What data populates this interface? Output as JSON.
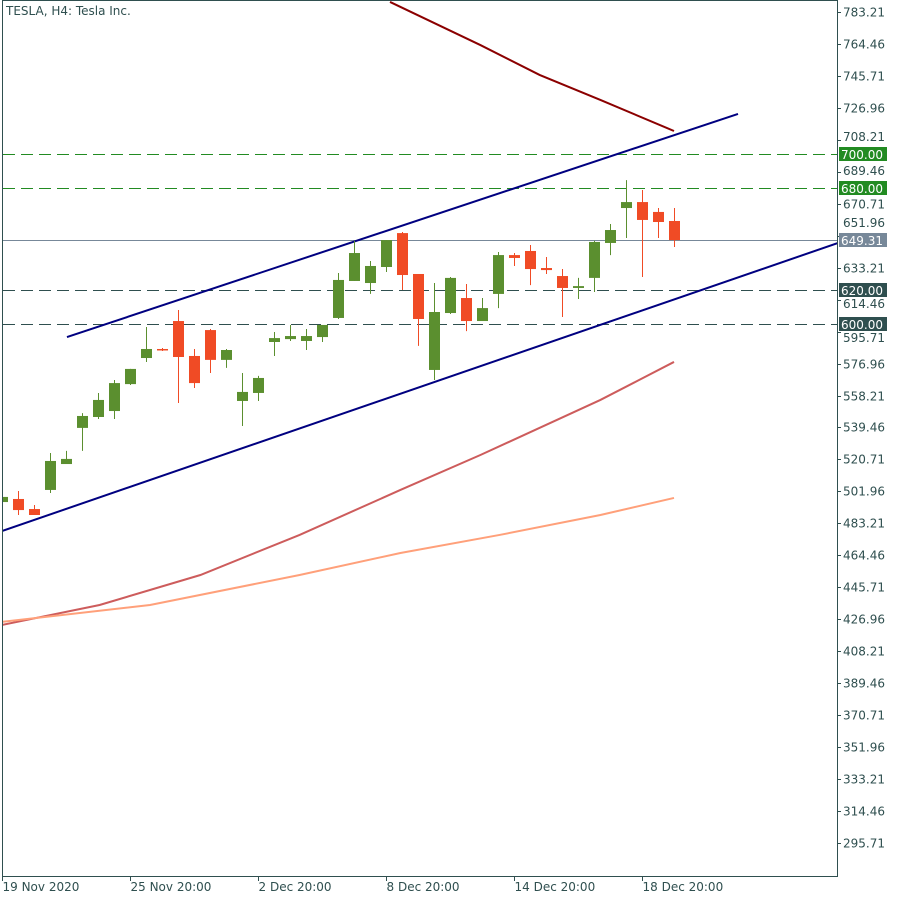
{
  "header": {
    "title": "TESLA, H4:  Tesla Inc."
  },
  "chart_data": {
    "type": "candlestick",
    "title": "TESLA, H4:  Tesla Inc.",
    "ylim": [
      286.34,
      789.07
    ],
    "yticks": [
      "783.21",
      "764.46",
      "745.71",
      "726.96",
      "708.21",
      "689.46",
      "670.71",
      "651.96",
      "633.21",
      "614.46",
      "595.71",
      "576.96",
      "558.21",
      "539.46",
      "520.71",
      "501.96",
      "483.21",
      "464.46",
      "445.71",
      "426.96",
      "408.21",
      "389.46",
      "370.71",
      "351.96",
      "333.21",
      "314.46",
      "295.71"
    ],
    "xticks": [
      {
        "index": 0,
        "label": "19 Nov 2020"
      },
      {
        "index": 8,
        "label": "25 Nov 20:00"
      },
      {
        "index": 16,
        "label": "2 Dec 20:00"
      },
      {
        "index": 24,
        "label": "8 Dec 20:00"
      },
      {
        "index": 32,
        "label": "14 Dec 20:00"
      },
      {
        "index": 40,
        "label": "18 Dec 20:00"
      }
    ],
    "candles": [
      [
        495.7,
        498.7,
        495.7,
        498.7
      ],
      [
        497.5,
        502.2,
        488.1,
        491.0
      ],
      [
        491.6,
        494.0,
        488.1,
        488.1
      ],
      [
        502.8,
        524.5,
        501.0,
        519.8
      ],
      [
        518.0,
        525.7,
        518.0,
        521.0
      ],
      [
        539.2,
        547.9,
        525.7,
        546.2
      ],
      [
        545.6,
        559.7,
        544.4,
        555.6
      ],
      [
        549.1,
        567.3,
        544.4,
        565.5
      ],
      [
        564.9,
        573.8,
        564.4,
        573.8
      ],
      [
        580.2,
        598.4,
        577.9,
        585.5
      ],
      [
        585.5,
        586.1,
        584.3,
        584.9
      ],
      [
        601.9,
        608.4,
        553.8,
        580.8
      ],
      [
        581.4,
        585.5,
        562.6,
        565.5
      ],
      [
        596.6,
        597.2,
        571.4,
        579.1
      ],
      [
        579.1,
        585.5,
        574.4,
        584.9
      ],
      [
        555.0,
        571.4,
        540.3,
        560.3
      ],
      [
        559.7,
        569.7,
        555.0,
        568.5
      ],
      [
        589.6,
        595.5,
        581.4,
        591.9
      ],
      [
        591.3,
        599.6,
        590.2,
        593.1
      ],
      [
        590.2,
        597.2,
        584.9,
        593.1
      ],
      [
        592.5,
        599.6,
        589.6,
        599.6
      ],
      [
        603.7,
        630.1,
        603.1,
        626.0
      ],
      [
        625.4,
        648.9,
        625.4,
        641.8
      ],
      [
        624.2,
        637.1,
        617.8,
        634.2
      ],
      [
        633.6,
        649.4,
        630.7,
        649.4
      ],
      [
        653.5,
        654.1,
        620.1,
        628.9
      ],
      [
        629.5,
        629.5,
        587.3,
        603.1
      ],
      [
        573.2,
        624.2,
        567.3,
        607.2
      ],
      [
        606.6,
        627.7,
        606.0,
        627.2
      ],
      [
        615.4,
        623.6,
        596.0,
        601.9
      ],
      [
        601.9,
        615.4,
        601.9,
        609.5
      ],
      [
        617.8,
        642.4,
        609.5,
        640.6
      ],
      [
        640.6,
        641.8,
        634.2,
        638.9
      ],
      [
        643.0,
        646.5,
        623.0,
        632.4
      ],
      [
        633.0,
        639.5,
        629.5,
        631.8
      ],
      [
        628.3,
        632.4,
        604.3,
        621.3
      ],
      [
        621.3,
        627.2,
        614.8,
        622.4
      ],
      [
        627.2,
        648.9,
        618.9,
        648.3
      ],
      [
        647.7,
        658.8,
        640.6,
        655.3
      ],
      [
        668.2,
        684.6,
        650.6,
        671.7
      ],
      [
        671.7,
        678.8,
        627.7,
        661.2
      ],
      [
        665.9,
        668.2,
        650.6,
        660.0
      ],
      [
        660.6,
        668.2,
        645.3,
        649.4
      ]
    ],
    "horizontal_levels": [
      {
        "price": "700.00",
        "color": "#228b22"
      },
      {
        "price": "680.00",
        "color": "#228b22"
      },
      {
        "price": "620.00",
        "color": "#2f4f4f"
      },
      {
        "price": "600.00",
        "color": "#2f4f4f"
      }
    ],
    "current_price": {
      "price": "649.31",
      "color": "#778899"
    },
    "trendlines": [
      {
        "color": "#000080",
        "points": [
          [
            4.06,
            592.5
          ],
          [
            46,
            723.4
          ]
        ]
      },
      {
        "color": "#000080",
        "points": [
          [
            0,
            478.7
          ],
          [
            52.25,
            647.7
          ]
        ]
      }
    ],
    "moving_averages": [
      {
        "color": "#8b0000",
        "points": [
          [
            24.25,
            789.1
          ],
          [
            29.9,
            763.8
          ],
          [
            33.6,
            746.3
          ],
          [
            37.4,
            731.6
          ],
          [
            42,
            713.4
          ]
        ]
      },
      {
        "color": "#cd5c5c",
        "points": [
          [
            0,
            423.6
          ],
          [
            6.1,
            435.3
          ],
          [
            12.4,
            452.9
          ],
          [
            18.6,
            476.4
          ],
          [
            24.9,
            502.8
          ],
          [
            29.9,
            523.3
          ],
          [
            37.4,
            555.6
          ],
          [
            42,
            577.9
          ]
        ]
      },
      {
        "color": "#ffa07a",
        "points": [
          [
            0,
            425.4
          ],
          [
            9.25,
            435.3
          ],
          [
            18.6,
            452.9
          ],
          [
            24.9,
            465.8
          ],
          [
            31.1,
            476.4
          ],
          [
            37.4,
            488.1
          ],
          [
            42,
            498.1
          ]
        ]
      }
    ],
    "colors": {
      "bull": "#5b8f2f",
      "bear": "#f04b25",
      "axis": "#2f4f4f"
    },
    "grid": false
  }
}
